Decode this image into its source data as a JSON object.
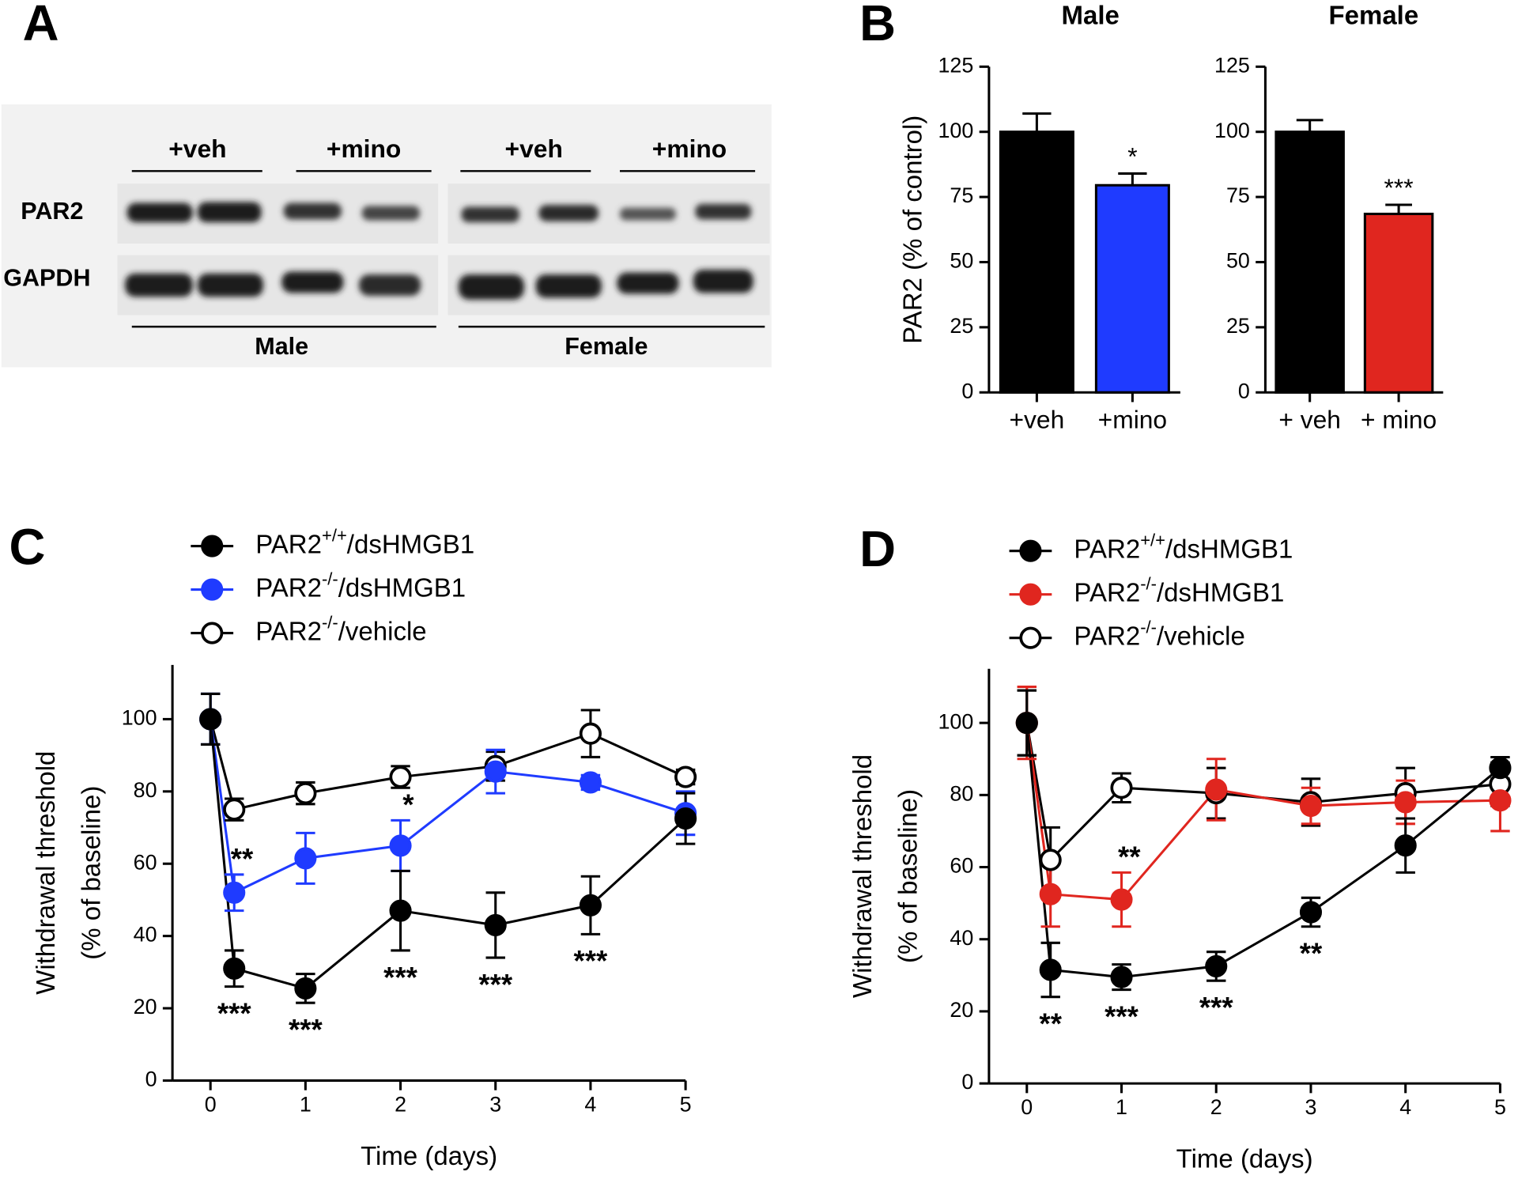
{
  "panel_labels": [
    "A",
    "B",
    "C",
    "D"
  ],
  "blot": {
    "row_labels": [
      "PAR2",
      "GAPDH"
    ],
    "treatments": [
      "+veh",
      "+mino",
      "+veh",
      "+mino"
    ],
    "groups": [
      "Male",
      "Female"
    ]
  },
  "chart_data": [
    {
      "type": "bar",
      "title": "Male",
      "ylabel": "PAR2 (% of control)",
      "categories": [
        "+veh",
        "+mino"
      ],
      "values": [
        100,
        79.5
      ],
      "errors": [
        7,
        4.5
      ],
      "colors": [
        "#000000",
        "#1f3bff"
      ],
      "significance": [
        null,
        "*"
      ],
      "ylim": [
        0,
        125
      ],
      "yticks": [
        0,
        25,
        50,
        75,
        100,
        125
      ]
    },
    {
      "type": "bar",
      "title": "Female",
      "categories": [
        "+ veh",
        "+ mino"
      ],
      "values": [
        100,
        68.5
      ],
      "errors": [
        4.5,
        3.5
      ],
      "colors": [
        "#000000",
        "#e0261f"
      ],
      "significance": [
        null,
        "***"
      ],
      "ylim": [
        0,
        125
      ],
      "yticks": [
        0,
        25,
        50,
        75,
        100,
        125
      ]
    },
    {
      "type": "line",
      "xlabel": "Time (days)",
      "ylabel": [
        "Withdrawal threshold",
        "(% of baseline)"
      ],
      "x": [
        0,
        0.25,
        1,
        2,
        3,
        4,
        5
      ],
      "series": [
        {
          "name": "PAR2+/+/dsHMGB1",
          "color": "#000000",
          "marker": "filled",
          "values": [
            100,
            31,
            25.5,
            47,
            43,
            48.5,
            72.5
          ],
          "errors": [
            7,
            5,
            4,
            11,
            9,
            8,
            7
          ],
          "significance": [
            null,
            "***",
            "***",
            "***",
            "***",
            "***",
            null
          ]
        },
        {
          "name": "PAR2-/-/dsHMGB1",
          "color": "#1f3bff",
          "marker": "filled",
          "values": [
            100,
            52,
            61.5,
            65,
            85.5,
            82.5,
            74
          ],
          "errors": [
            7,
            5,
            7,
            7,
            6,
            2,
            6
          ],
          "significance": [
            null,
            "**",
            null,
            "*",
            null,
            null,
            null
          ]
        },
        {
          "name": "PAR2-/-/vehicle",
          "color": "#000000",
          "marker": "open",
          "values": [
            100,
            75,
            79.5,
            84,
            87,
            96,
            84
          ],
          "errors": [
            7,
            3,
            3,
            3,
            4,
            6.5,
            2
          ]
        }
      ],
      "xlim": [
        -0.4,
        5
      ],
      "xticks": [
        0,
        1,
        2,
        3,
        4,
        5
      ],
      "ylim": [
        0,
        115
      ],
      "yticks": [
        0,
        20,
        40,
        60,
        80,
        100
      ]
    },
    {
      "type": "line",
      "xlabel": "Time (days)",
      "ylabel": [
        "Withdrawal threshold",
        "(% of baseline)"
      ],
      "x": [
        0,
        0.25,
        1,
        2,
        3,
        4,
        5
      ],
      "series": [
        {
          "name": "PAR2+/+/dsHMGB1",
          "color": "#000000",
          "marker": "filled",
          "values": [
            100,
            31.5,
            29.5,
            32.5,
            47.5,
            66,
            87.5
          ],
          "errors": [
            9,
            7.5,
            3.5,
            4,
            4,
            7.5,
            3
          ],
          "significance": [
            null,
            "**",
            "***",
            "***",
            "**",
            null,
            null
          ]
        },
        {
          "name": "PAR2-/-/dsHMGB1",
          "color": "#e0261f",
          "marker": "filled",
          "values": [
            100,
            52.5,
            51,
            81.5,
            77,
            78,
            78.5
          ],
          "errors": [
            10,
            9,
            7.5,
            8.5,
            5,
            6,
            8.5
          ],
          "significance": [
            null,
            null,
            "**",
            null,
            null,
            null,
            null
          ]
        },
        {
          "name": "PAR2-/-/vehicle",
          "color": "#000000",
          "marker": "open",
          "values": [
            100,
            62,
            82,
            80.5,
            78,
            80.5,
            83
          ],
          "errors": [
            9,
            9,
            4,
            7,
            6.5,
            7,
            6
          ]
        }
      ],
      "xlim": [
        -0.4,
        5
      ],
      "xticks": [
        0,
        1,
        2,
        3,
        4,
        5
      ],
      "ylim": [
        0,
        115
      ],
      "yticks": [
        0,
        20,
        40,
        60,
        80,
        100
      ]
    }
  ]
}
